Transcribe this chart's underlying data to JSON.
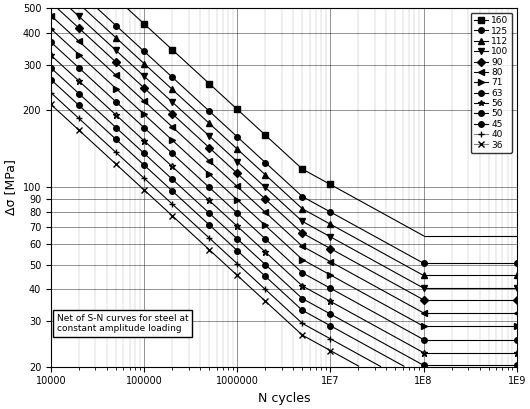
{
  "title": "",
  "xlabel": "N cycles",
  "ylabel": "Δσ [MPa]",
  "annotation": "Net of S-N curves for steel at\nconstant amplitude loading",
  "xlim": [
    10000,
    1000000000
  ],
  "ylim": [
    20,
    500
  ],
  "categories": [
    160,
    125,
    112,
    100,
    90,
    80,
    71,
    63,
    56,
    50,
    45,
    40,
    36
  ],
  "markers": [
    "s",
    "o",
    "^",
    "v",
    "D",
    "<",
    ">",
    "o",
    "*",
    "o",
    "o",
    "+",
    "x"
  ],
  "line_colors": [
    "black",
    "black",
    "black",
    "black",
    "black",
    "black",
    "black",
    "black",
    "black",
    "black",
    "black",
    "black",
    "black"
  ],
  "marker_colors": [
    "black",
    "black",
    "black",
    "black",
    "black",
    "black",
    "black",
    "black",
    "black",
    "black",
    "black",
    "black",
    "black"
  ],
  "flat_colors": [
    "black",
    "black",
    "black",
    "black",
    "black",
    "black",
    "black",
    "black",
    "black",
    "black",
    "black",
    "gray",
    "gray"
  ],
  "N_C": 2000000,
  "N_D": 5000000,
  "N_L": 100000000,
  "slope1": 3,
  "slope2": 5,
  "marker_N_points": [
    10000,
    20000,
    50000,
    100000,
    200000,
    500000,
    1000000,
    2000000,
    5000000,
    10000000,
    100000000,
    1000000000
  ]
}
